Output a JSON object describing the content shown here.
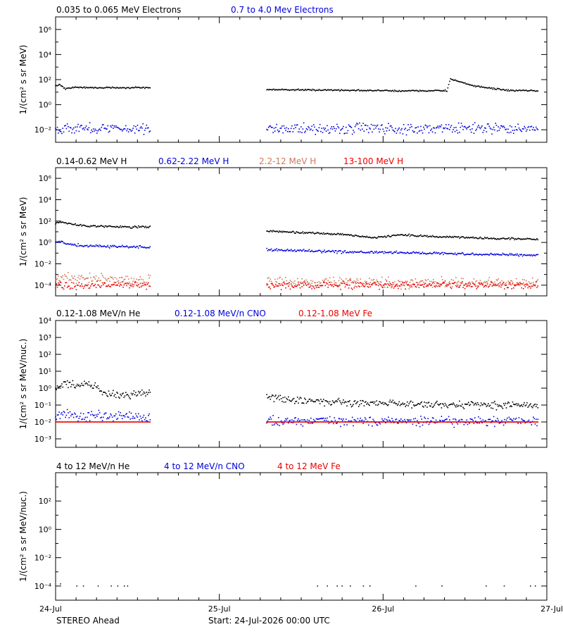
{
  "figure": {
    "footer": {
      "spacecraft": "STEREO Ahead",
      "start": "Start: 24-Jul-2026 00:00 UTC"
    },
    "x_axis": {
      "ticks": [
        "24-Jul",
        "25-Jul",
        "26-Jul",
        "27-Jul"
      ],
      "range_days": [
        0,
        3
      ]
    }
  },
  "colors": {
    "black": "#000000",
    "blue": "#0000dd",
    "salmon": "#cc7a5c",
    "red": "#ee0000"
  },
  "chart_data": [
    {
      "type": "scatter",
      "ylabel": "1/(cm² s sr MeV)",
      "y_scale": "log",
      "ylim_log10": [
        -3,
        7
      ],
      "y_ticks": [
        {
          "e": -2,
          "label": "10⁻²"
        },
        {
          "e": 0,
          "label": "10⁰"
        },
        {
          "e": 2,
          "label": "10²"
        },
        {
          "e": 4,
          "label": "10⁴"
        },
        {
          "e": 6,
          "label": "10⁶"
        }
      ],
      "data_gap_days": [
        0.58,
        1.29
      ],
      "series": [
        {
          "name": "0.035 to 0.065 MeV Electrons",
          "color": "black",
          "scatter": 0.05,
          "points": [
            [
              0.0,
              1.5
            ],
            [
              0.03,
              1.6
            ],
            [
              0.06,
              1.25
            ],
            [
              0.12,
              1.4
            ],
            [
              0.2,
              1.35
            ],
            [
              0.35,
              1.36
            ],
            [
              0.58,
              1.35
            ],
            [
              1.29,
              1.2
            ],
            [
              1.8,
              1.15
            ],
            [
              2.1,
              1.1
            ],
            [
              2.39,
              1.12
            ],
            [
              2.41,
              2.05
            ],
            [
              2.55,
              1.5
            ],
            [
              2.75,
              1.15
            ],
            [
              2.95,
              1.1
            ]
          ]
        },
        {
          "name": "0.7 to 4.0 Mev Electrons",
          "color": "blue",
          "scatter": 0.35,
          "points": [
            [
              0.0,
              -1.9
            ],
            [
              0.58,
              -1.9
            ],
            [
              1.29,
              -1.9
            ],
            [
              2.95,
              -1.9
            ]
          ]
        }
      ]
    },
    {
      "type": "scatter",
      "ylabel": "1/(cm² s sr MeV)",
      "y_scale": "log",
      "ylim_log10": [
        -5,
        7
      ],
      "y_ticks": [
        {
          "e": -4,
          "label": "10⁻⁴"
        },
        {
          "e": -2,
          "label": "10⁻²"
        },
        {
          "e": 0,
          "label": "10⁰"
        },
        {
          "e": 2,
          "label": "10²"
        },
        {
          "e": 4,
          "label": "10⁴"
        },
        {
          "e": 6,
          "label": "10⁶"
        }
      ],
      "data_gap_days": [
        0.58,
        1.29
      ],
      "series": [
        {
          "name": "0.14-0.62 MeV H",
          "color": "black",
          "scatter": 0.08,
          "points": [
            [
              0.0,
              1.8
            ],
            [
              0.04,
              1.95
            ],
            [
              0.1,
              1.7
            ],
            [
              0.2,
              1.55
            ],
            [
              0.4,
              1.45
            ],
            [
              0.58,
              1.45
            ],
            [
              1.29,
              1.05
            ],
            [
              1.6,
              0.85
            ],
            [
              1.75,
              0.75
            ],
            [
              1.95,
              0.45
            ],
            [
              2.1,
              0.7
            ],
            [
              2.3,
              0.55
            ],
            [
              2.6,
              0.4
            ],
            [
              2.95,
              0.3
            ]
          ]
        },
        {
          "name": "0.62-2.22 MeV H",
          "color": "blue",
          "scatter": 0.1,
          "points": [
            [
              0.0,
              0.05
            ],
            [
              0.05,
              0.0
            ],
            [
              0.15,
              -0.3
            ],
            [
              0.58,
              -0.45
            ],
            [
              1.29,
              -0.7
            ],
            [
              1.8,
              -0.9
            ],
            [
              2.3,
              -1.0
            ],
            [
              2.95,
              -1.2
            ]
          ]
        },
        {
          "name": "2.2-12 MeV H",
          "color": "salmon",
          "scatter": 0.4,
          "points": [
            [
              0.0,
              -3.3
            ],
            [
              0.58,
              -3.6
            ],
            [
              1.29,
              -3.7
            ],
            [
              2.95,
              -3.8
            ]
          ]
        },
        {
          "name": "13-100 MeV H",
          "color": "red",
          "scatter": 0.3,
          "points": [
            [
              0.0,
              -4.0
            ],
            [
              0.58,
              -4.0
            ],
            [
              1.29,
              -4.0
            ],
            [
              2.95,
              -4.0
            ]
          ]
        }
      ]
    },
    {
      "type": "scatter",
      "ylabel": "1/(cm² s sr MeV/nuc.)",
      "y_scale": "log",
      "ylim_log10": [
        -3.5,
        4
      ],
      "y_ticks": [
        {
          "e": -3,
          "label": "10⁻³"
        },
        {
          "e": -2,
          "label": "10⁻²"
        },
        {
          "e": -1,
          "label": "10⁻¹"
        },
        {
          "e": 0,
          "label": "10⁰"
        },
        {
          "e": 1,
          "label": "10¹"
        },
        {
          "e": 2,
          "label": "10²"
        },
        {
          "e": 3,
          "label": "10³"
        },
        {
          "e": 4,
          "label": "10⁴"
        }
      ],
      "data_gap_days": [
        0.58,
        1.29
      ],
      "series": [
        {
          "name": "0.12-1.08 MeV/n He",
          "color": "black",
          "scatter": 0.18,
          "points": [
            [
              0.0,
              0.0
            ],
            [
              0.06,
              0.3
            ],
            [
              0.15,
              0.1
            ],
            [
              0.18,
              0.35
            ],
            [
              0.3,
              -0.3
            ],
            [
              0.45,
              -0.4
            ],
            [
              0.58,
              -0.2
            ],
            [
              1.29,
              -0.5
            ],
            [
              1.5,
              -0.75
            ],
            [
              2.0,
              -0.9
            ],
            [
              2.5,
              -1.0
            ],
            [
              2.95,
              -1.0
            ]
          ]
        },
        {
          "name": "0.12-1.08 MeV/n CNO",
          "color": "blue",
          "scatter": 0.25,
          "points": [
            [
              0.0,
              -1.6
            ],
            [
              0.58,
              -1.7
            ],
            [
              1.29,
              -1.95
            ],
            [
              2.95,
              -1.95
            ]
          ]
        },
        {
          "name": "0.12-1.08 MeV Fe",
          "color": "red",
          "scatter": 0.0,
          "points": [
            [
              0.0,
              -2.0
            ],
            [
              0.58,
              -2.0
            ],
            [
              1.29,
              -2.0
            ],
            [
              2.95,
              -2.0
            ]
          ]
        }
      ]
    },
    {
      "type": "scatter",
      "ylabel": "1/(cm² s sr MeV/nuc.)",
      "y_scale": "log",
      "ylim_log10": [
        -5,
        4
      ],
      "y_ticks": [
        {
          "e": -4,
          "label": "10⁻⁴"
        },
        {
          "e": -2,
          "label": "10⁻²"
        },
        {
          "e": 0,
          "label": "10⁰"
        },
        {
          "e": 2,
          "label": "10²"
        }
      ],
      "series": [
        {
          "name": "4 to 12 MeV/n He",
          "color": "black",
          "scatter": 0.0,
          "points_discrete": [
            [
              0.03,
              -3.85
            ],
            [
              0.13,
              -4.0
            ],
            [
              0.17,
              -4.0
            ],
            [
              0.26,
              -4.0
            ],
            [
              0.34,
              -4.0
            ],
            [
              0.38,
              -4.0
            ],
            [
              0.42,
              -4.0
            ],
            [
              0.44,
              -4.0
            ],
            [
              1.6,
              -4.0
            ],
            [
              1.66,
              -4.0
            ],
            [
              1.72,
              -4.0
            ],
            [
              1.75,
              -4.0
            ],
            [
              1.8,
              -4.0
            ],
            [
              1.88,
              -4.0
            ],
            [
              1.92,
              -4.0
            ],
            [
              2.2,
              -4.0
            ],
            [
              2.36,
              -4.0
            ],
            [
              2.63,
              -4.0
            ],
            [
              2.74,
              -4.0
            ],
            [
              2.9,
              -4.0
            ],
            [
              2.93,
              -4.0
            ]
          ]
        },
        {
          "name": "4 to 12 MeV/n CNO",
          "color": "blue",
          "points_discrete": []
        },
        {
          "name": "4 to 12 MeV Fe",
          "color": "red",
          "points_discrete": []
        }
      ]
    }
  ]
}
